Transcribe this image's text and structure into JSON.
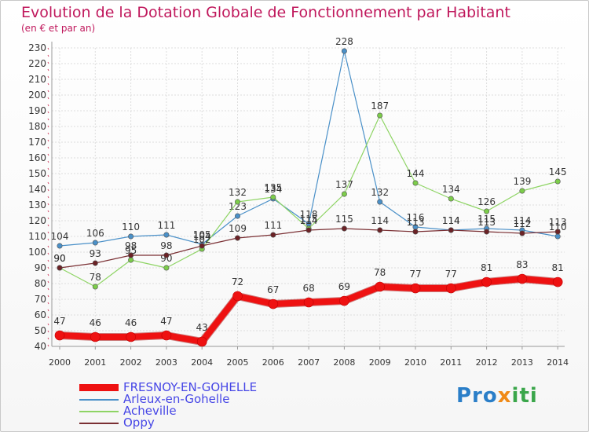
{
  "title": "Evolution de la Dotation Globale de Fonctionnement par Habitant",
  "subtitle": "(en € et par an)",
  "logo": {
    "part1": "Pro",
    "part2": "x",
    "part3": "iti"
  },
  "chart_data": {
    "type": "line",
    "title": "Evolution de la Dotation Globale de Fonctionnement par Habitant",
    "ylabel": "(en € et par an)",
    "xlabel": "",
    "categories": [
      "2000",
      "2001",
      "2002",
      "2003",
      "2004",
      "2005",
      "2006",
      "2007",
      "2008",
      "2009",
      "2010",
      "2011",
      "2012",
      "2013",
      "2014"
    ],
    "ylim": [
      40,
      230
    ],
    "yticks": [
      40,
      50,
      60,
      70,
      80,
      90,
      100,
      110,
      120,
      130,
      140,
      150,
      160,
      170,
      180,
      190,
      200,
      210,
      220,
      230
    ],
    "grid": true,
    "legend_position": "bottom-left",
    "series": [
      {
        "name": "Arleux-en-Gohelle",
        "color": "#4a90c8",
        "marker": "#4a90c8",
        "width": 1.2,
        "values": [
          104,
          106,
          110,
          111,
          105,
          123,
          134,
          118,
          228,
          132,
          116,
          114,
          115,
          114,
          110
        ]
      },
      {
        "name": "Acheville",
        "color": "#8ed464",
        "marker": "#7ccd4a",
        "width": 1.2,
        "values": [
          90,
          78,
          95,
          90,
          102,
          132,
          135,
          115,
          137,
          187,
          144,
          134,
          126,
          139,
          145
        ]
      },
      {
        "name": "Oppy",
        "color": "#7a2f33",
        "marker": "#6b2226",
        "width": 1.2,
        "values": [
          90,
          93,
          98,
          98,
          104,
          109,
          111,
          114,
          115,
          114,
          113,
          114,
          113,
          112,
          113
        ]
      },
      {
        "name": "FRESNOY-EN-GOHELLE",
        "color": "#ee1111",
        "marker": "#ee1111",
        "width": 8,
        "values": [
          47,
          46,
          46,
          47,
          43,
          72,
          67,
          68,
          69,
          78,
          77,
          77,
          81,
          83,
          81
        ]
      }
    ],
    "legend_order": [
      "FRESNOY-EN-GOHELLE",
      "Arleux-en-Gohelle",
      "Acheville",
      "Oppy"
    ]
  }
}
